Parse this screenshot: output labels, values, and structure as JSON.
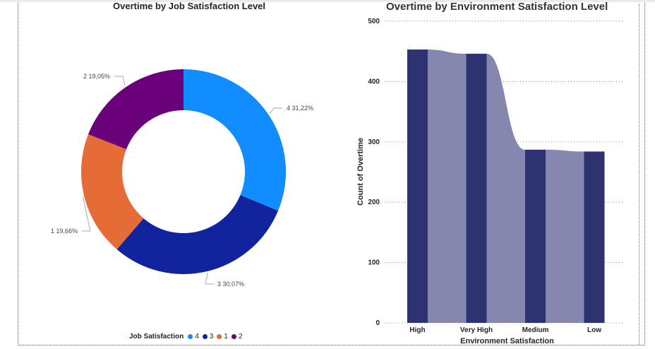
{
  "chart_data": [
    {
      "type": "pie",
      "title": "Overtime by Job Satisfaction Level",
      "legend_title": "Job Satisfaction",
      "legend_position": "bottom",
      "slices": [
        {
          "name": "4",
          "value": 31.22,
          "label": "4 31,22%",
          "color": "#118DFF"
        },
        {
          "name": "3",
          "value": 30.07,
          "label": "3 30,07%",
          "color": "#12239E"
        },
        {
          "name": "1",
          "value": 19.66,
          "label": "1 19,66%",
          "color": "#E66C37"
        },
        {
          "name": "2",
          "value": 19.05,
          "label": "2 19,05%",
          "color": "#6B007B"
        }
      ]
    },
    {
      "type": "bar",
      "title": "Overtime by Environment Satisfaction Level",
      "xlabel": "Environment Satisfaction",
      "ylabel": "Count of Overtime",
      "categories": [
        "High",
        "Very High",
        "Medium",
        "Low"
      ],
      "values": [
        453,
        446,
        287,
        284
      ],
      "ylim": [
        0,
        500
      ],
      "yticks": [
        0,
        100,
        200,
        300,
        400,
        500
      ],
      "grid": true,
      "bar_color": "#2C3370",
      "ribbon_color": "#8587AE"
    }
  ]
}
